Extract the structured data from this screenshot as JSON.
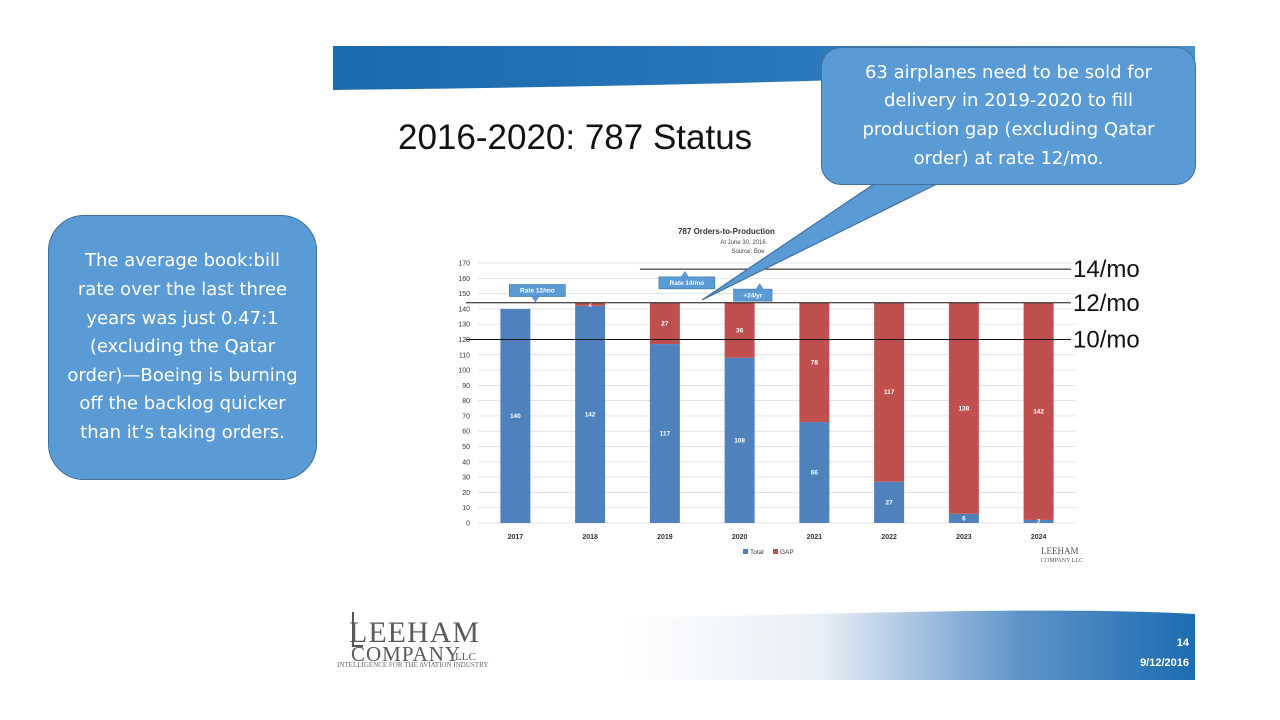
{
  "slide": {
    "title": "2016-2020: 787 Status",
    "page_number": "14",
    "date": "9/12/2016",
    "logo": {
      "line1": "LEEHAM",
      "line2": "COMPANY",
      "llc": "LLC",
      "tagline": "INTELLIGENCE FOR THE AVIATION INDUSTRY"
    }
  },
  "callouts": {
    "left": "The average book:bill rate over the last three years was just 0.47:1 (excluding the Qatar order)—Boeing is burning off the backlog quicker than it’s taking orders.",
    "top": "63 airplanes need to be sold for delivery in 2019-2020 to fill production gap (excluding Qatar order) at rate 12/mo."
  },
  "colors": {
    "total": "#4F81BD",
    "gap": "#C0504D",
    "callout_fill": "#5B9BD5",
    "callout_border": "#41719C",
    "banner": "#1F6FB2"
  },
  "chart_data": {
    "type": "bar",
    "stacked": true,
    "title": "787 Orders-to-Production",
    "subtitle": "At June 30, 2016",
    "source": "Source: Boe",
    "categories": [
      "2017",
      "2018",
      "2019",
      "2020",
      "2021",
      "2022",
      "2023",
      "2024"
    ],
    "series": [
      {
        "name": "Total",
        "values": [
          140,
          142,
          117,
          108,
          66,
          27,
          6,
          2
        ],
        "labels": [
          "140",
          "142",
          "117",
          "108",
          "66",
          "27",
          "6",
          "2"
        ]
      },
      {
        "name": "GAP",
        "values": [
          0,
          2,
          27,
          36,
          78,
          117,
          138,
          142
        ],
        "labels": [
          "",
          "2",
          "27",
          "36",
          "78",
          "117",
          "138",
          "142"
        ]
      }
    ],
    "ylim": [
      0,
      170
    ],
    "yticks": [
      0,
      10,
      20,
      30,
      40,
      50,
      60,
      70,
      80,
      90,
      100,
      110,
      120,
      130,
      140,
      150,
      160,
      170
    ],
    "grid": true,
    "legend": "bottom",
    "reference_lines": [
      {
        "label": "14/mo",
        "value": 166
      },
      {
        "label": "12/mo",
        "value": 144
      },
      {
        "label": "10/mo",
        "value": 120
      }
    ],
    "annotations": [
      {
        "text": "Rate 12/mo",
        "category": "2017",
        "value": 152,
        "arrow": "down"
      },
      {
        "text": "Rate 14/mo",
        "category": "2019",
        "value": 157,
        "arrow": "up"
      },
      {
        "text": "+24/yr",
        "category": "2020",
        "value": 149,
        "arrow": "up"
      }
    ],
    "watermark": {
      "line1": "LEEHAM",
      "line2": "COMPANY LLC"
    }
  }
}
